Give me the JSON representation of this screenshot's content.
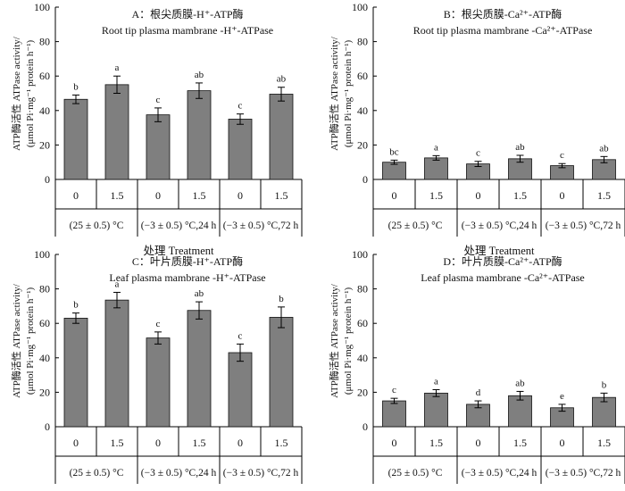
{
  "chart_data": [
    {
      "type": "bar",
      "title_line1": "A：根尖质膜-H⁺-ATP酶",
      "title_line2": "Root tip plasma mambrane -H⁺-ATPase",
      "ylabel_line1": "ATP酶活性 ATPase activity/",
      "ylabel_line2": "(μmol Pi·mg⁻¹ protein h⁻¹)",
      "xlabel": "处理 Treatment",
      "ylim": [
        0,
        100
      ],
      "yticks": [
        0,
        20,
        40,
        60,
        80,
        100
      ],
      "categories": [
        "0",
        "1.5",
        "0",
        "1.5",
        "0",
        "1.5"
      ],
      "groups": [
        "(25 ± 0.5) °C",
        "(−3 ± 0.5) °C,24 h",
        "(−3 ± 0.5) °C,72 h"
      ],
      "values": [
        46.5,
        55,
        37.5,
        51.5,
        35,
        49.5
      ],
      "errors": [
        2.5,
        5,
        4,
        4.5,
        3,
        4
      ],
      "significance": [
        "b",
        "a",
        "c",
        "ab",
        "c",
        "ab"
      ]
    },
    {
      "type": "bar",
      "title_line1": "B：根尖质膜-Ca²⁺-ATP酶",
      "title_line2": "Root tip plasma mambrane -Ca²⁺-ATPase",
      "ylabel_line1": "ATP酶活性 ATPase activity/",
      "ylabel_line2": "(μmol Pi·mg⁻¹ protein h⁻¹)",
      "xlabel": "处理 Treatment",
      "ylim": [
        0,
        100
      ],
      "yticks": [
        0,
        20,
        40,
        60,
        80,
        100
      ],
      "categories": [
        "0",
        "1.5",
        "0",
        "1.5",
        "0",
        "1.5"
      ],
      "groups": [
        "(25 ± 0.5) °C",
        "(−3 ± 0.5) °C,24 h",
        "(−3 ± 0.5) °C,72 h"
      ],
      "values": [
        10,
        12.5,
        9,
        12,
        8,
        11.5
      ],
      "errors": [
        1.2,
        1.3,
        1.5,
        2,
        1.2,
        1.8
      ],
      "significance": [
        "bc",
        "a",
        "c",
        "ab",
        "c",
        "ab"
      ]
    },
    {
      "type": "bar",
      "title_line1": "C：叶片质膜-H⁺-ATP酶",
      "title_line2": "Leaf plasma mambrane -H⁺-ATPase",
      "ylabel_line1": "ATP酶活性 ATPase activity/",
      "ylabel_line2": "(μmol Pi·mg⁻¹ protein h⁻¹)",
      "xlabel": "处理 Treatment",
      "ylim": [
        0,
        100
      ],
      "yticks": [
        0,
        20,
        40,
        60,
        80,
        100
      ],
      "categories": [
        "0",
        "1.5",
        "0",
        "1.5",
        "0",
        "1.5"
      ],
      "groups": [
        "(25 ± 0.5) °C",
        "(−3 ± 0.5) °C,24 h",
        "(−3 ± 0.5) °C,72 h"
      ],
      "values": [
        63,
        73.5,
        51.5,
        67.5,
        43,
        63.5
      ],
      "errors": [
        3,
        4.5,
        3.5,
        5,
        5,
        6
      ],
      "significance": [
        "b",
        "a",
        "c",
        "ab",
        "c",
        "b"
      ]
    },
    {
      "type": "bar",
      "title_line1": "D：叶片质膜-Ca²⁺-ATP酶",
      "title_line2": "Leaf plasma mambrane -Ca²⁺-ATPase",
      "ylabel_line1": "ATP酶活性 ATPase activity/",
      "ylabel_line2": "(μmol Pi·mg⁻¹ protein h⁻¹)",
      "xlabel": "处理 Treatment",
      "ylim": [
        0,
        100
      ],
      "yticks": [
        0,
        20,
        40,
        60,
        80,
        100
      ],
      "categories": [
        "0",
        "1.5",
        "0",
        "1.5",
        "0",
        "1.5"
      ],
      "groups": [
        "(25 ± 0.5) °C",
        "(−3 ± 0.5) °C,24 h",
        "(−3 ± 0.5) °C,72 h"
      ],
      "values": [
        15,
        19.5,
        13,
        18,
        11,
        17
      ],
      "errors": [
        1.5,
        2,
        2,
        2.5,
        2,
        2.5
      ],
      "significance": [
        "c",
        "a",
        "d",
        "ab",
        "e",
        "b"
      ]
    }
  ]
}
